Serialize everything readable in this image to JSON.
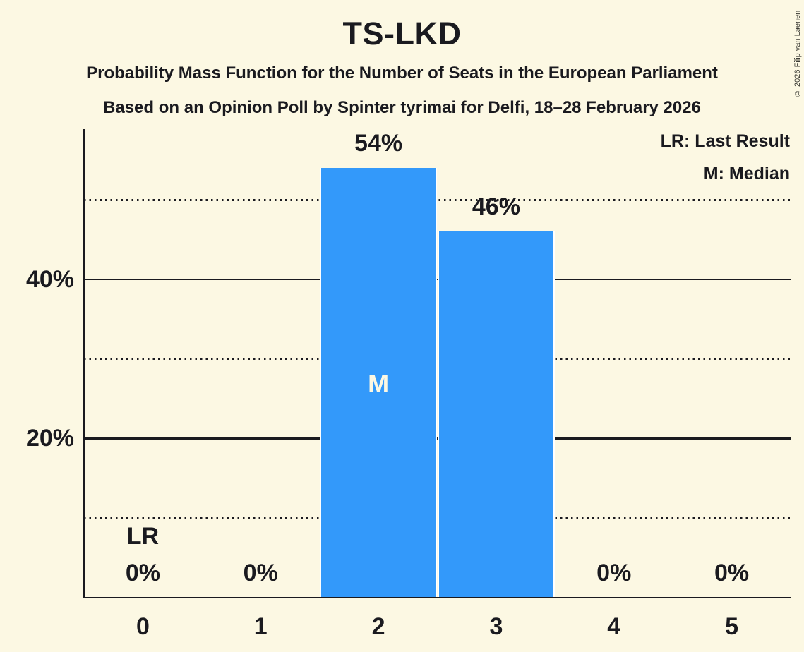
{
  "header": {
    "title": "TS-LKD",
    "subtitle1": "Probability Mass Function for the Number of Seats in the European Parliament",
    "subtitle2": "Based on an Opinion Poll by Spinter tyrimai for Delfi, 18–28 February 2026"
  },
  "copyright": "© 2026 Filip van Laenen",
  "legend": {
    "lr": "LR: Last Result",
    "m": "M: Median"
  },
  "chart_data": {
    "type": "bar",
    "title": "TS-LKD",
    "categories": [
      "0",
      "1",
      "2",
      "3",
      "4",
      "5"
    ],
    "values": [
      0,
      0,
      54,
      46,
      0,
      0
    ],
    "value_labels": [
      "0%",
      "0%",
      "54%",
      "46%",
      "0%",
      "0%"
    ],
    "y_axis_ticks": [
      {
        "value": 20,
        "label": "20%"
      },
      {
        "value": 40,
        "label": "40%"
      }
    ],
    "gridlines": {
      "solid": [
        20,
        40
      ],
      "dotted": [
        10,
        30,
        50
      ]
    },
    "ylim": [
      0,
      59
    ],
    "median_category_index": 2,
    "median_marker": "M",
    "last_result_category_index": 0,
    "last_result_marker": "LR",
    "legend_position": "top-right",
    "bar_color": "#3399fa",
    "background_color": "#fcf8e3",
    "text_color": "#1a1a1f"
  }
}
